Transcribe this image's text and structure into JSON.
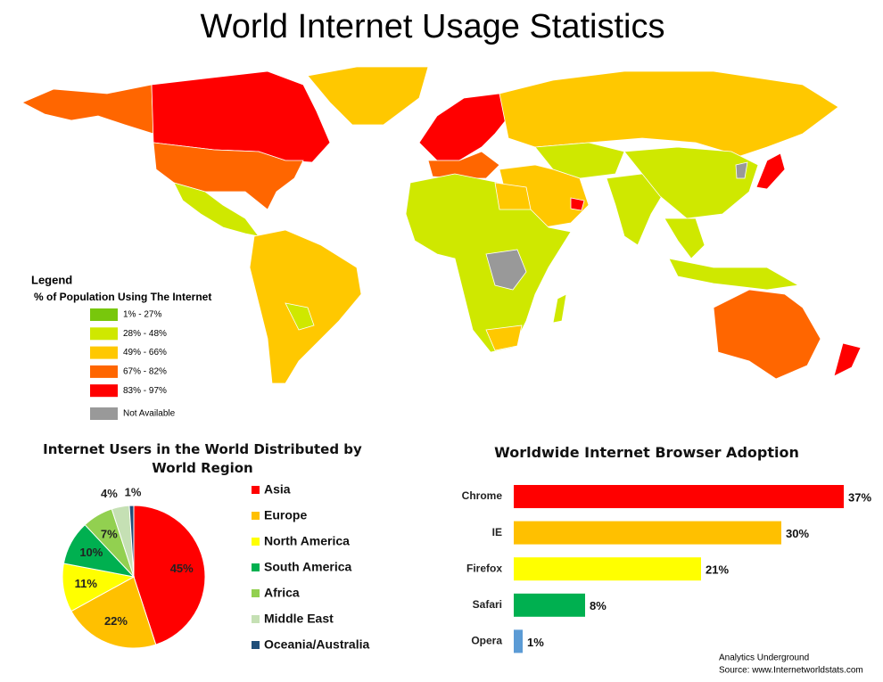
{
  "title": "World Internet Usage Statistics",
  "map": {
    "legend_title": "Legend",
    "legend_subtitle": "% of Population Using The Internet",
    "legend": [
      {
        "label": "1% - 27%",
        "color": "#78c70c"
      },
      {
        "label": "28% - 48%",
        "color": "#cfe800"
      },
      {
        "label": "49% - 66%",
        "color": "#ffc800"
      },
      {
        "label": "67% - 82%",
        "color": "#ff6600"
      },
      {
        "label": "83% - 97%",
        "color": "#ff0000"
      },
      {
        "label": "Not Available",
        "color": "#999999"
      }
    ]
  },
  "chart_data": [
    {
      "type": "pie",
      "title": "Internet Users in the World Distributed by World Region",
      "categories": [
        "Asia",
        "Europe",
        "North America",
        "South America",
        "Africa",
        "Middle East",
        "Oceania/Australia"
      ],
      "values": [
        45,
        22,
        11,
        10,
        7,
        4,
        1
      ],
      "value_labels": [
        "45%",
        "22%",
        "11%",
        "10%",
        "7%",
        "4%",
        "1%"
      ],
      "colors": [
        "#ff0000",
        "#ffc000",
        "#ffff00",
        "#00b050",
        "#92d050",
        "#c5e0b4",
        "#1f4e79"
      ]
    },
    {
      "type": "hbar",
      "title": "Worldwide Internet Browser Adoption",
      "categories": [
        "Chrome",
        "IE",
        "Firefox",
        "Safari",
        "Opera"
      ],
      "values": [
        37,
        30,
        21,
        8,
        1
      ],
      "value_labels": [
        "37%",
        "30%",
        "21%",
        "8%",
        "1%"
      ],
      "colors": [
        "#ff0000",
        "#ffc000",
        "#ffff00",
        "#00b050",
        "#5b9bd5"
      ]
    }
  ],
  "credits": [
    "Analytics Underground",
    "Source:  www.Internetworldstats.com"
  ]
}
